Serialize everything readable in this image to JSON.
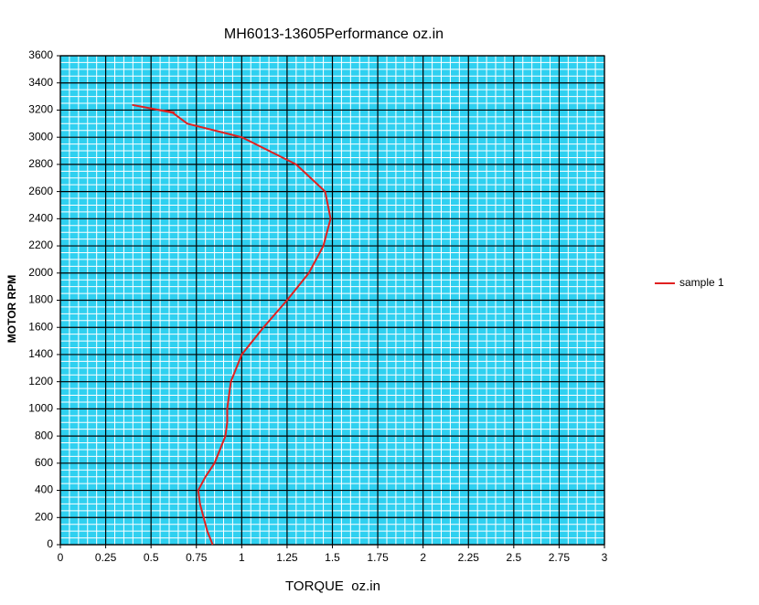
{
  "chart_data": {
    "type": "line",
    "title": "MH6013-13605Performance oz.in",
    "x_label": "TORQUE  oz.in",
    "y_label": "MOTOR RPM",
    "x": [
      0.84,
      0.81,
      0.79,
      0.77,
      0.76,
      0.8,
      0.85,
      0.88,
      0.91,
      0.92,
      0.92,
      0.94,
      1.0,
      1.12,
      1.25,
      1.37,
      1.45,
      1.49,
      1.46,
      1.3,
      1.0,
      0.7,
      0.62,
      0.4,
      0.55,
      0.63
    ],
    "series": [
      {
        "name": "sample 1",
        "color": "#e02020",
        "values": [
          0,
          100,
          200,
          300,
          400,
          500,
          600,
          700,
          800,
          900,
          1000,
          1200,
          1400,
          1600,
          1800,
          2000,
          2200,
          2400,
          2600,
          2800,
          3000,
          3100,
          3180,
          3237,
          3200,
          3183
        ]
      }
    ],
    "xlim": [
      0,
      3
    ],
    "xticks": [
      0,
      0.25,
      0.5,
      0.75,
      1,
      1.25,
      1.5,
      1.75,
      2,
      2.25,
      2.5,
      2.75,
      3
    ],
    "ylim": [
      0,
      3600
    ],
    "yticks": [
      0,
      200,
      400,
      600,
      800,
      1000,
      1200,
      1400,
      1600,
      1800,
      2000,
      2200,
      2400,
      2600,
      2800,
      3000,
      3200,
      3400,
      3600
    ],
    "grid": true,
    "legend": "right"
  }
}
